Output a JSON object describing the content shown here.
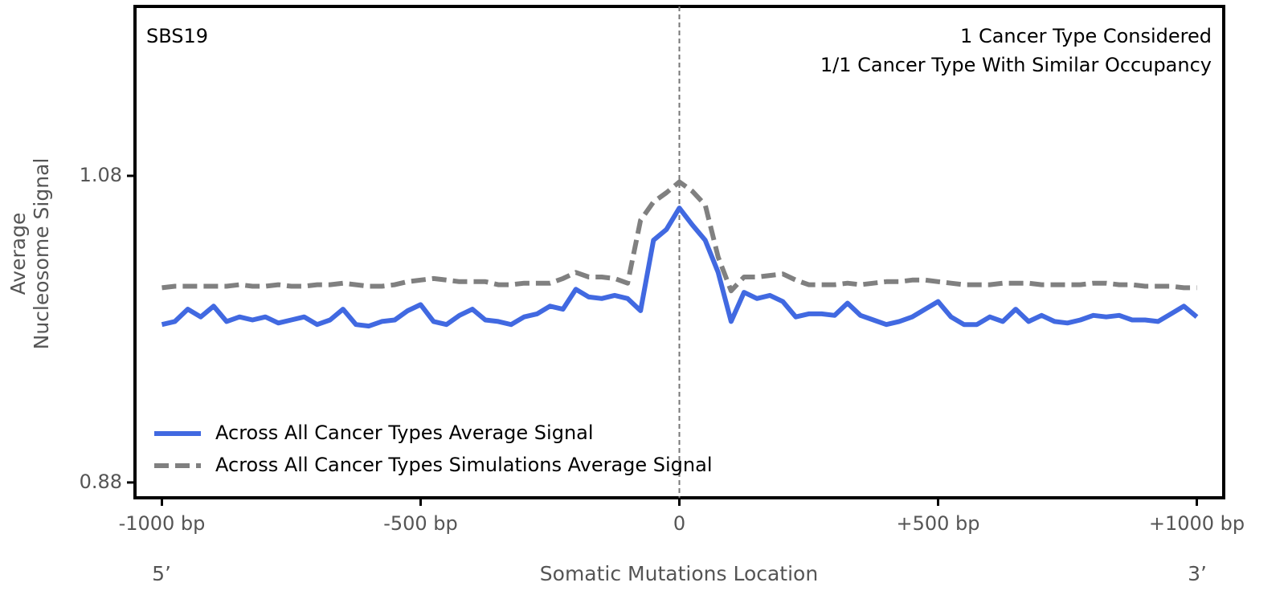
{
  "chart_data": {
    "type": "line",
    "annotation_left": "SBS19",
    "annotations_right": [
      "1 Cancer Type Considered",
      "1/1 Cancer Type With Similar Occupancy"
    ],
    "ylabel": [
      "Average",
      "Nucleosome Signal"
    ],
    "xlabel": "Somatic Mutations Location",
    "x_end_labels": [
      "5’",
      "3’"
    ],
    "x": [
      -1000,
      -975,
      -950,
      -925,
      -900,
      -875,
      -850,
      -825,
      -800,
      -775,
      -750,
      -725,
      -700,
      -675,
      -650,
      -625,
      -600,
      -575,
      -550,
      -525,
      -500,
      -475,
      -450,
      -425,
      -400,
      -375,
      -350,
      -325,
      -300,
      -275,
      -250,
      -225,
      -200,
      -175,
      -150,
      -125,
      -100,
      -75,
      -50,
      -25,
      0,
      25,
      50,
      75,
      100,
      125,
      150,
      175,
      200,
      225,
      250,
      275,
      300,
      325,
      350,
      375,
      400,
      425,
      450,
      475,
      500,
      525,
      550,
      575,
      600,
      625,
      650,
      675,
      700,
      725,
      750,
      775,
      800,
      825,
      850,
      875,
      900,
      925,
      950,
      975,
      1000
    ],
    "series": [
      {
        "name": "Across All Cancer Types Average Signal",
        "color": "#4169e1",
        "dashed": false,
        "values": [
          0.983,
          0.985,
          0.993,
          0.988,
          0.995,
          0.985,
          0.988,
          0.986,
          0.988,
          0.984,
          0.986,
          0.988,
          0.983,
          0.986,
          0.993,
          0.983,
          0.982,
          0.985,
          0.986,
          0.992,
          0.996,
          0.985,
          0.983,
          0.989,
          0.993,
          0.986,
          0.985,
          0.983,
          0.988,
          0.99,
          0.995,
          0.993,
          1.006,
          1.001,
          1.0,
          1.002,
          1.0,
          0.992,
          1.038,
          1.045,
          1.059,
          1.048,
          1.038,
          1.017,
          0.985,
          1.004,
          1.0,
          1.002,
          0.998,
          0.988,
          0.99,
          0.99,
          0.989,
          0.997,
          0.989,
          0.986,
          0.983,
          0.985,
          0.988,
          0.993,
          0.998,
          0.988,
          0.983,
          0.983,
          0.988,
          0.985,
          0.993,
          0.985,
          0.989,
          0.985,
          0.984,
          0.986,
          0.989,
          0.988,
          0.989,
          0.986,
          0.986,
          0.985,
          0.99,
          0.995,
          0.988
        ]
      },
      {
        "name": "Across All Cancer Types Simulations Average Signal",
        "color": "#808080",
        "dashed": true,
        "values": [
          1.007,
          1.008,
          1.008,
          1.008,
          1.008,
          1.008,
          1.009,
          1.008,
          1.008,
          1.009,
          1.008,
          1.008,
          1.009,
          1.009,
          1.01,
          1.009,
          1.008,
          1.008,
          1.009,
          1.011,
          1.012,
          1.013,
          1.012,
          1.011,
          1.011,
          1.011,
          1.009,
          1.009,
          1.01,
          1.01,
          1.01,
          1.013,
          1.017,
          1.014,
          1.014,
          1.013,
          1.01,
          1.051,
          1.063,
          1.069,
          1.076,
          1.07,
          1.061,
          1.027,
          1.005,
          1.014,
          1.014,
          1.015,
          1.016,
          1.012,
          1.009,
          1.009,
          1.009,
          1.01,
          1.009,
          1.01,
          1.011,
          1.011,
          1.012,
          1.012,
          1.011,
          1.01,
          1.009,
          1.009,
          1.009,
          1.01,
          1.01,
          1.01,
          1.009,
          1.009,
          1.009,
          1.009,
          1.01,
          1.01,
          1.009,
          1.009,
          1.008,
          1.008,
          1.008,
          1.007,
          1.007
        ]
      }
    ],
    "xlim": [
      -1052,
      1052
    ],
    "ylim": [
      0.87,
      1.1905
    ],
    "xticks": [
      {
        "value": -1000,
        "label": "-1000 bp"
      },
      {
        "value": -500,
        "label": "-500 bp"
      },
      0,
      {
        "value": 500,
        "label": "+500 bp"
      },
      {
        "value": 1000,
        "label": "+1000 bp"
      }
    ],
    "yticks": [
      0.88,
      1.08
    ],
    "vline": 0,
    "legend": "lower left"
  }
}
